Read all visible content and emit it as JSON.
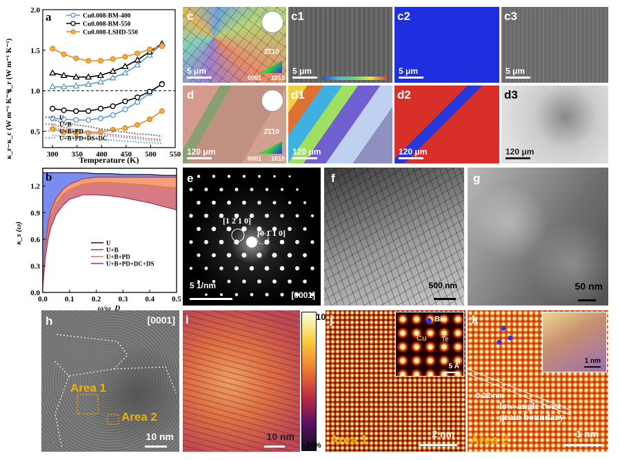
{
  "panel_labels": {
    "a": "a",
    "b": "b",
    "c": "c",
    "c1": "c1",
    "c2": "c2",
    "c3": "c3",
    "d": "d",
    "d1": "d1",
    "d2": "d2",
    "d3": "d3",
    "e": "e",
    "f": "f",
    "g": "g",
    "h": "h",
    "i": "i",
    "j": "j",
    "k": "k"
  },
  "panel_a": {
    "ylabel_top": "κ_r (W m⁻¹ K⁻¹)",
    "ylabel_bottom": "κ_r−κ_c (W m⁻¹ K⁻¹)",
    "xlabel": "Temperature (K)",
    "yticks": [
      "0.5",
      "1.0",
      "1.5",
      "2.0"
    ],
    "xticks": [
      "300",
      "350",
      "400",
      "450",
      "500",
      "550"
    ],
    "legend_top": [
      "Cu0.008-BM-400",
      "Cu0.008-BM-550",
      "Cu0.008-LSHD-550"
    ],
    "legend_bottom": [
      "U",
      "U+B",
      "U+B+PD",
      "U+B+PD+DS+DC"
    ],
    "colors": {
      "bm400": "#5a9bd5",
      "bm550": "#000000",
      "lshd": "#e08a1c",
      "lshd_fill": "#f2b04a",
      "u": "#6d6d8f",
      "ub": "#d87a6a",
      "ubpd": "#9aa0c8",
      "ubpdds": "#6fb7a0"
    }
  },
  "chart_data": [
    {
      "type": "line",
      "title": "",
      "xlabel": "Temperature (K)",
      "ylabel": "κ_r (W m⁻¹ K⁻¹)",
      "xlim": [
        280,
        550
      ],
      "ylim": [
        0.3,
        2.0
      ],
      "x": [
        300,
        323,
        348,
        373,
        398,
        423,
        448,
        473,
        498,
        523
      ],
      "series": [
        {
          "name": "Cu0.008-BM-400",
          "values": [
            1.05,
            1.05,
            1.06,
            1.08,
            1.11,
            1.16,
            1.22,
            1.32,
            1.44,
            1.58
          ]
        },
        {
          "name": "Cu0.008-BM-550",
          "values": [
            1.22,
            1.19,
            1.17,
            1.17,
            1.19,
            1.24,
            1.3,
            1.38,
            1.48,
            1.58
          ]
        },
        {
          "name": "Cu0.008-LSHD-550",
          "values": [
            1.52,
            1.45,
            1.4,
            1.37,
            1.37,
            1.39,
            1.42,
            1.46,
            1.51,
            1.55
          ]
        },
        {
          "name": "Cu0.008-BM-400 (κ_r−κ_c)",
          "values": [
            0.66,
            0.65,
            0.64,
            0.64,
            0.66,
            0.7,
            0.77,
            0.86,
            0.97,
            1.09
          ]
        },
        {
          "name": "Cu0.008-BM-550 (κ_r−κ_c)",
          "values": [
            0.78,
            0.76,
            0.75,
            0.75,
            0.78,
            0.81,
            0.87,
            0.92,
            0.99,
            1.08
          ]
        },
        {
          "name": "Cu0.008-LSHD-550 (κ_r−κ_c)",
          "values": [
            0.53,
            0.49,
            0.48,
            0.48,
            0.49,
            0.52,
            0.54,
            0.58,
            0.65,
            0.75
          ]
        },
        {
          "name": "U",
          "values": [
            0.64,
            0.61,
            0.58,
            0.56,
            0.53,
            0.51,
            0.49,
            0.47,
            0.46,
            0.44
          ]
        },
        {
          "name": "U+B",
          "values": [
            0.58,
            0.55,
            0.52,
            0.5,
            0.48,
            0.46,
            0.44,
            0.43,
            0.41,
            0.4
          ]
        },
        {
          "name": "U+B+PD",
          "values": [
            0.55,
            0.52,
            0.5,
            0.48,
            0.46,
            0.44,
            0.42,
            0.41,
            0.39,
            0.38
          ]
        },
        {
          "name": "U+B+PD+DS+DC",
          "values": [
            0.45,
            0.44,
            0.43,
            0.41,
            0.4,
            0.39,
            0.38,
            0.37,
            0.36,
            0.35
          ]
        }
      ]
    },
    {
      "type": "area",
      "title": "",
      "xlabel": "ω/ω_D",
      "ylabel": "κ_s (ω)",
      "xlim": [
        0,
        0.5
      ],
      "ylim": [
        0,
        1.4
      ],
      "xticks": [
        "0.0",
        "0.1",
        "0.2",
        "0.3",
        "0.4",
        "0.5"
      ],
      "yticks": [
        "0.0",
        "0.3",
        "0.6",
        "0.9",
        "1.2"
      ],
      "x": [
        0.0,
        0.01,
        0.02,
        0.03,
        0.05,
        0.075,
        0.1,
        0.15,
        0.2,
        0.25,
        0.3,
        0.35,
        0.4,
        0.45,
        0.5
      ],
      "series": [
        {
          "name": "U",
          "values": [
            1.35,
            1.35,
            1.35,
            1.35,
            1.35,
            1.35,
            1.35,
            1.35,
            1.34,
            1.34,
            1.33,
            1.33,
            1.33,
            1.32,
            1.32
          ]
        },
        {
          "name": "U+B",
          "values": [
            0.1,
            0.55,
            0.78,
            0.92,
            1.06,
            1.16,
            1.22,
            1.28,
            1.3,
            1.3,
            1.3,
            1.3,
            1.3,
            1.3,
            1.3
          ]
        },
        {
          "name": "U+B+PD",
          "values": [
            0.1,
            0.5,
            0.72,
            0.86,
            1.0,
            1.1,
            1.16,
            1.22,
            1.24,
            1.24,
            1.23,
            1.22,
            1.21,
            1.19,
            1.18
          ]
        },
        {
          "name": "U+B+PD+DC+DS",
          "values": [
            0.06,
            0.4,
            0.6,
            0.73,
            0.88,
            0.98,
            1.05,
            1.1,
            1.1,
            1.09,
            1.07,
            1.04,
            1.01,
            0.97,
            0.93
          ]
        }
      ]
    }
  ],
  "panel_b": {
    "legend": [
      "U",
      "U+B",
      "U+B+PD",
      "U+B+PD+DC+DS"
    ]
  },
  "panel_c": {
    "scale": "5 μm",
    "dir": "2̄1̄10",
    "c1": "5 μm",
    "c2": "5 μm",
    "c3": "5 μm",
    "ipf_0001": "0001",
    "ipf_1010": "1010"
  },
  "panel_d": {
    "scale": "120 μm",
    "dir": "2̄1̄10",
    "d1": "120 μm",
    "d2": "120 μm",
    "d3": "120 μm",
    "ipf_0001": "0001",
    "ipf_1010": "1010"
  },
  "panel_e": {
    "spot1": "[1 2̄ 1 0]",
    "spot2": "[0 1̄ 1 0]",
    "scale": "5 1/nm",
    "zone": "[0001]"
  },
  "panel_f": {
    "scale": "500 nm"
  },
  "panel_g": {
    "scale": "50 nm"
  },
  "panel_h": {
    "zone": "[0001]",
    "area1": "Area 1",
    "area2": "Area 2",
    "scale": "10 nm"
  },
  "panel_i": {
    "cb_top": "10%",
    "cb_bottom": "-10%",
    "scale": "10 nm"
  },
  "panel_j": {
    "label": "Area 1",
    "scale": "2 nm",
    "inset_scale": "5 Å",
    "bi": "Bi",
    "cu": "Cu",
    "te": "Te"
  },
  "panel_k": {
    "label": "Area 2",
    "scale": "1 nm",
    "inset_scale": "1 nm",
    "spacing": "0.22 nm",
    "annotation_line1": "low-angle twist",
    "annotation_line2": "grain boundary"
  }
}
